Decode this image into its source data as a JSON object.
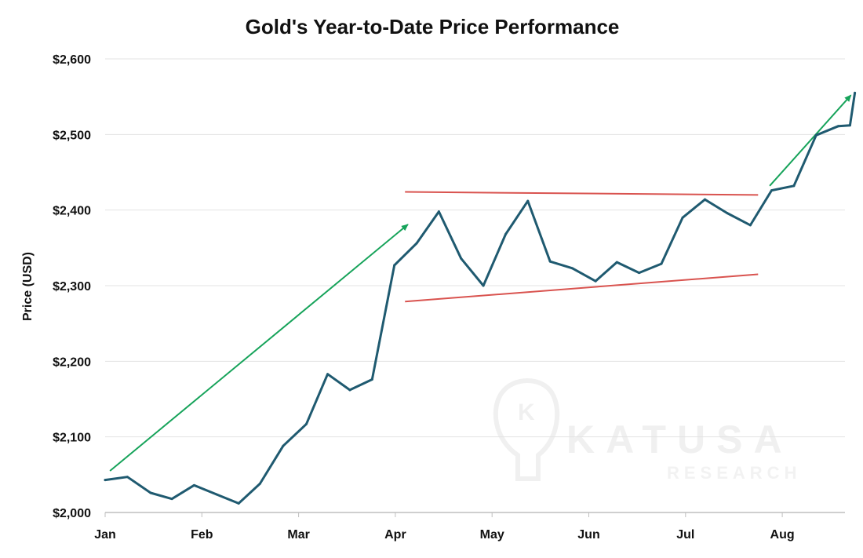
{
  "chart_data": {
    "type": "line",
    "title": "Gold's Year-to-Date Price Performance",
    "xlabel": "",
    "ylabel": "Price (USD)",
    "x_ticks": [
      "Jan",
      "Feb",
      "Mar",
      "Apr",
      "May",
      "Jun",
      "Jul",
      "Aug"
    ],
    "y_ticks": [
      "$2,000",
      "$2,100",
      "$2,200",
      "$2,300",
      "$2,400",
      "$2,500",
      "$2,600"
    ],
    "ylim": [
      2000,
      2600
    ],
    "xlim": [
      0,
      7.75
    ],
    "grid": "horizontal",
    "series": [
      {
        "name": "Gold price",
        "color": "#1f5a70",
        "x": [
          0,
          0.23,
          0.47,
          0.69,
          0.92,
          1.15,
          1.38,
          1.6,
          1.84,
          2.08,
          2.3,
          2.53,
          2.76,
          2.99,
          3.22,
          3.45,
          3.68,
          3.91,
          4.14,
          4.37,
          4.6,
          4.83,
          5.07,
          5.29,
          5.52,
          5.75,
          5.97,
          6.2,
          6.43,
          6.67,
          6.89,
          7.12,
          7.35,
          7.58,
          7.7,
          7.75
        ],
        "values": [
          2043,
          2047,
          2026,
          2018,
          2036,
          2024,
          2012,
          2038,
          2088,
          2117,
          2183,
          2162,
          2176,
          2327,
          2356,
          2398,
          2336,
          2300,
          2368,
          2412,
          2332,
          2323,
          2306,
          2331,
          2317,
          2329,
          2390,
          2414,
          2396,
          2380,
          2426,
          2432,
          2499,
          2511,
          2512,
          2555
        ]
      }
    ],
    "annotations": [
      {
        "kind": "arrow",
        "color": "#16a35a",
        "from": [
          0.05,
          2055
        ],
        "to": [
          3.13,
          2381
        ]
      },
      {
        "kind": "arrow",
        "color": "#16a35a",
        "from": [
          6.87,
          2432
        ],
        "to": [
          7.71,
          2552
        ]
      },
      {
        "kind": "line",
        "color": "#d9534f",
        "from": [
          3.1,
          2424
        ],
        "to": [
          6.75,
          2420
        ]
      },
      {
        "kind": "line",
        "color": "#d9534f",
        "from": [
          3.1,
          2279
        ],
        "to": [
          6.75,
          2315
        ]
      }
    ],
    "watermark": {
      "text": "KATUSA",
      "subtext": "RESEARCH"
    }
  }
}
